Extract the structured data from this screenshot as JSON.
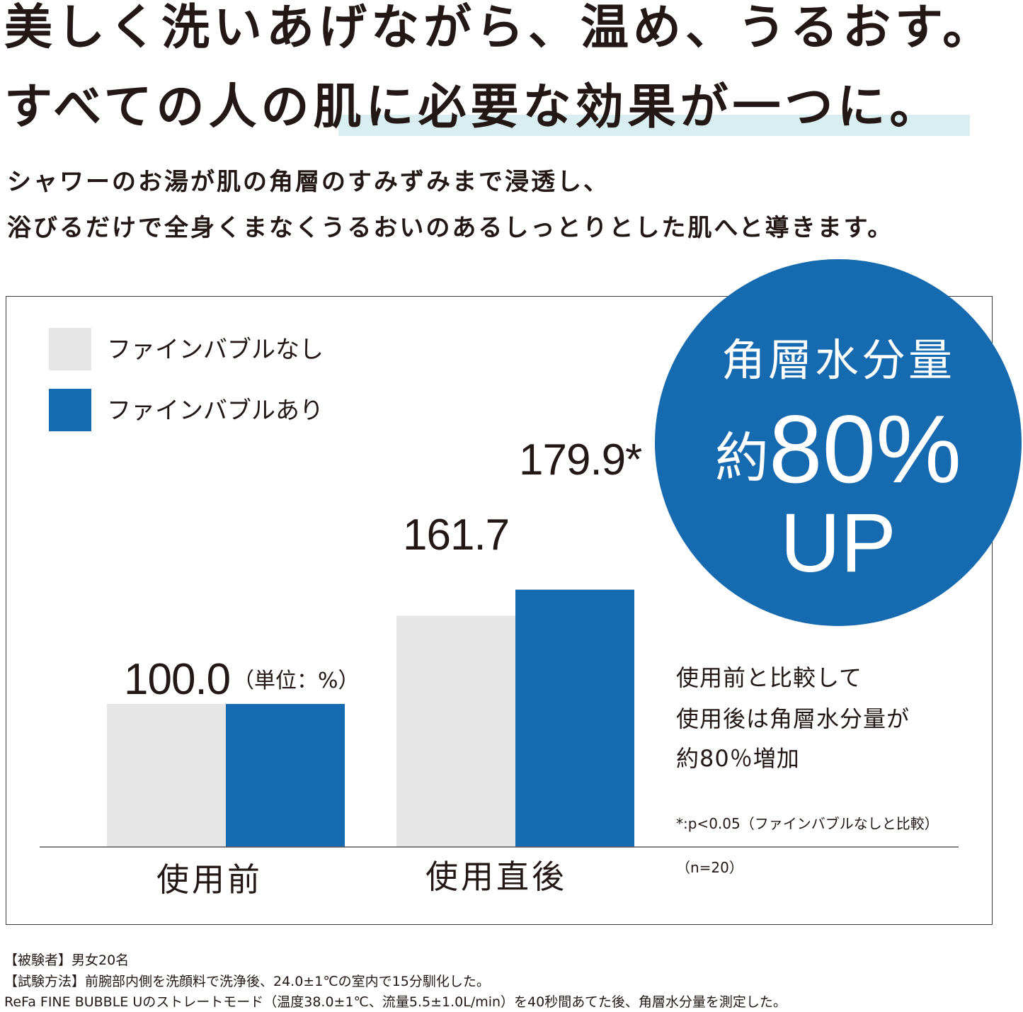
{
  "headline": {
    "line1": "美しく洗いあげながら、温め、うるおす。",
    "line2": "すべての人の肌に必要な効果が一つに。"
  },
  "subheadline": {
    "line1": "シャワーのお湯が肌の角層のすみずみまで浸透し、",
    "line2": "浴びるだけで全身くまなくうるおいのあるしっとりとした肌へと導きます。"
  },
  "colors": {
    "without_fine_bubble": "#e6e6e6",
    "with_fine_bubble": "#156ab0",
    "badge": "#156ab0",
    "highlight": "#d8eef0",
    "text": "#231815"
  },
  "chart_data": {
    "type": "bar",
    "categories": [
      "使用前",
      "使用直後"
    ],
    "series": [
      {
        "name": "ファインバブルなし",
        "values": [
          100.0,
          161.7
        ]
      },
      {
        "name": "ファインバブルあり",
        "values": [
          100.0,
          179.9
        ]
      }
    ],
    "data_labels": [
      "100.0",
      "161.7",
      "179.9*"
    ],
    "unit_label": "（単位：%）",
    "ylim": [
      0,
      200
    ],
    "grid": false,
    "legend_position": "top-left"
  },
  "badge": {
    "title": "角層水分量",
    "prefix": "約",
    "value": "80%",
    "suffix": "UP"
  },
  "notes": {
    "line1": "使用前と比較して",
    "line2": "使用後は角層水分量が",
    "line3": "約80％増加",
    "significance": "*:p<0.05（ファインバブルなしと比較）",
    "sample": "（n=20）"
  },
  "footer": {
    "line1": "【被験者】男女20名",
    "line2": "【試験方法】前腕部内側を洗顔料で洗浄後、24.0±1℃の室内で15分馴化した。",
    "line3": "ReFa FINE BUBBLE Uのストレートモード（温度38.0±1℃、流量5.5±1.0L/min）を40秒間あてた後、角層水分量を測定した。"
  }
}
